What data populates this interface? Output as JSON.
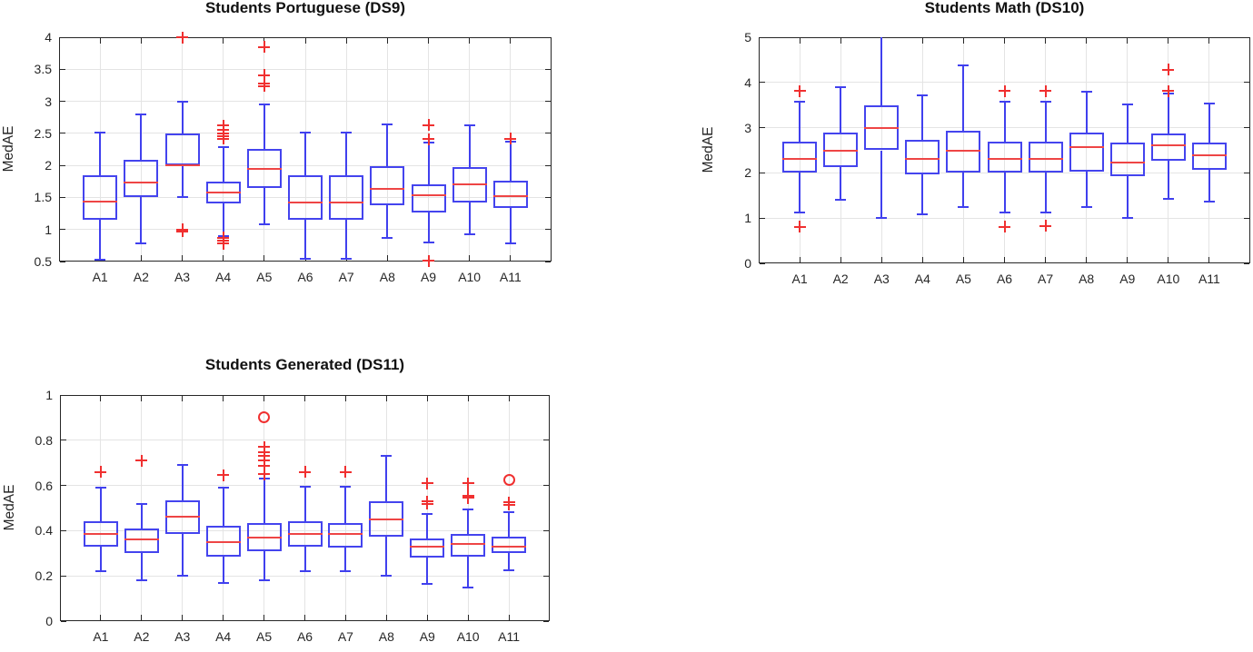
{
  "figure": {
    "background": "#ffffff",
    "palette": {
      "box_color": "#4444ee",
      "median_color": "#ee4545",
      "outlier_color": "#f03030",
      "grid_color": "#e4e4e4",
      "axis_color": "#262626",
      "text_color": "#262626"
    }
  },
  "chart_data": [
    {
      "type": "boxplot",
      "title": "Students Portuguese (DS9)",
      "ylabel": "MedAE",
      "xlabel": "",
      "grid": true,
      "legend": "none",
      "categories": [
        "A1",
        "A2",
        "A3",
        "A4",
        "A5",
        "A6",
        "A7",
        "A8",
        "A9",
        "A10",
        "A11"
      ],
      "ylim": [
        0.5,
        4
      ],
      "yticks": [
        0.5,
        1,
        1.5,
        2,
        2.5,
        3,
        3.5,
        4
      ],
      "ytick_labels": [
        "0.5",
        "1",
        "1.5",
        "2",
        "2.5",
        "3",
        "3.5",
        "4"
      ],
      "boxes": [
        {
          "category": "A1",
          "whisker_low": 0.53,
          "q1": 1.15,
          "median": 1.43,
          "q3": 1.84,
          "whisker_high": 2.51,
          "outliers": []
        },
        {
          "category": "A2",
          "whisker_low": 0.78,
          "q1": 1.5,
          "median": 1.73,
          "q3": 2.09,
          "whisker_high": 2.79,
          "outliers": []
        },
        {
          "category": "A3",
          "whisker_low": 1.5,
          "q1": 2.0,
          "median": 2.0,
          "q3": 2.5,
          "whisker_high": 3.0,
          "outliers": [
            4.0,
            1.0,
            0.97
          ]
        },
        {
          "category": "A4",
          "whisker_low": 0.9,
          "q1": 1.4,
          "median": 1.58,
          "q3": 1.75,
          "whisker_high": 2.28,
          "outliers": [
            2.62,
            2.55,
            2.5,
            2.46,
            2.42,
            0.87,
            0.82,
            0.78
          ]
        },
        {
          "category": "A5",
          "whisker_low": 1.08,
          "q1": 1.65,
          "median": 1.95,
          "q3": 2.26,
          "whisker_high": 2.95,
          "outliers": [
            3.85,
            3.41,
            3.28,
            3.24
          ]
        },
        {
          "category": "A6",
          "whisker_low": 0.54,
          "q1": 1.15,
          "median": 1.42,
          "q3": 1.84,
          "whisker_high": 2.51,
          "outliers": []
        },
        {
          "category": "A7",
          "whisker_low": 0.54,
          "q1": 1.15,
          "median": 1.42,
          "q3": 1.84,
          "whisker_high": 2.51,
          "outliers": []
        },
        {
          "category": "A8",
          "whisker_low": 0.87,
          "q1": 1.38,
          "median": 1.64,
          "q3": 1.99,
          "whisker_high": 2.64,
          "outliers": []
        },
        {
          "category": "A9",
          "whisker_low": 0.8,
          "q1": 1.26,
          "median": 1.53,
          "q3": 1.71,
          "whisker_high": 2.36,
          "outliers": [
            2.63,
            2.41,
            0.51
          ]
        },
        {
          "category": "A10",
          "whisker_low": 0.93,
          "q1": 1.42,
          "median": 1.71,
          "q3": 1.97,
          "whisker_high": 2.62,
          "outliers": []
        },
        {
          "category": "A11",
          "whisker_low": 0.79,
          "q1": 1.33,
          "median": 1.52,
          "q3": 1.76,
          "whisker_high": 2.37,
          "outliers": [
            2.42
          ]
        }
      ]
    },
    {
      "type": "boxplot",
      "title": "Students Math (DS10)",
      "ylabel": "MedAE",
      "xlabel": "",
      "grid": true,
      "legend": "none",
      "categories": [
        "A1",
        "A2",
        "A3",
        "A4",
        "A5",
        "A6",
        "A7",
        "A8",
        "A9",
        "A10",
        "A11"
      ],
      "ylim": [
        0,
        5
      ],
      "yticks": [
        0,
        1,
        2,
        3,
        4,
        5
      ],
      "ytick_labels": [
        "0",
        "1",
        "2",
        "3",
        "4",
        "5"
      ],
      "boxes": [
        {
          "category": "A1",
          "whisker_low": 1.13,
          "q1": 2.0,
          "median": 2.31,
          "q3": 2.7,
          "whisker_high": 3.58,
          "outliers": [
            3.81,
            0.81
          ]
        },
        {
          "category": "A2",
          "whisker_low": 1.4,
          "q1": 2.12,
          "median": 2.5,
          "q3": 2.89,
          "whisker_high": 3.9,
          "outliers": []
        },
        {
          "category": "A3",
          "whisker_low": 1.0,
          "q1": 2.5,
          "median": 3.0,
          "q3": 3.5,
          "whisker_high": 5.0,
          "outliers": []
        },
        {
          "category": "A4",
          "whisker_low": 1.09,
          "q1": 1.96,
          "median": 2.31,
          "q3": 2.74,
          "whisker_high": 3.71,
          "outliers": []
        },
        {
          "category": "A5",
          "whisker_low": 1.25,
          "q1": 2.0,
          "median": 2.5,
          "q3": 2.93,
          "whisker_high": 4.37,
          "outliers": []
        },
        {
          "category": "A6",
          "whisker_low": 1.13,
          "q1": 2.0,
          "median": 2.31,
          "q3": 2.7,
          "whisker_high": 3.58,
          "outliers": [
            3.81,
            0.81
          ]
        },
        {
          "category": "A7",
          "whisker_low": 1.13,
          "q1": 2.0,
          "median": 2.31,
          "q3": 2.7,
          "whisker_high": 3.58,
          "outliers": [
            3.81,
            0.83
          ]
        },
        {
          "category": "A8",
          "whisker_low": 1.25,
          "q1": 2.03,
          "median": 2.57,
          "q3": 2.89,
          "whisker_high": 3.79,
          "outliers": []
        },
        {
          "category": "A9",
          "whisker_low": 1.0,
          "q1": 1.93,
          "median": 2.23,
          "q3": 2.67,
          "whisker_high": 3.51,
          "outliers": []
        },
        {
          "category": "A10",
          "whisker_low": 1.43,
          "q1": 2.27,
          "median": 2.61,
          "q3": 2.87,
          "whisker_high": 3.75,
          "outliers": [
            4.28,
            3.81
          ]
        },
        {
          "category": "A11",
          "whisker_low": 1.37,
          "q1": 2.07,
          "median": 2.39,
          "q3": 2.68,
          "whisker_high": 3.53,
          "outliers": []
        }
      ]
    },
    {
      "type": "boxplot",
      "title": "Students Generated (DS11)",
      "ylabel": "MedAE",
      "xlabel": "",
      "grid": true,
      "legend": "none",
      "categories": [
        "A1",
        "A2",
        "A3",
        "A4",
        "A5",
        "A6",
        "A7",
        "A8",
        "A9",
        "A10",
        "A11"
      ],
      "ylim": [
        0,
        1
      ],
      "yticks": [
        0,
        0.2,
        0.4,
        0.6,
        0.8,
        1
      ],
      "ytick_labels": [
        "0",
        "0.2",
        "0.4",
        "0.6",
        "0.8",
        "1"
      ],
      "boxes": [
        {
          "category": "A1",
          "whisker_low": 0.22,
          "q1": 0.33,
          "median": 0.385,
          "q3": 0.44,
          "whisker_high": 0.59,
          "outliers": [
            0.66
          ]
        },
        {
          "category": "A2",
          "whisker_low": 0.18,
          "q1": 0.3,
          "median": 0.36,
          "q3": 0.41,
          "whisker_high": 0.52,
          "outliers": [
            0.71
          ]
        },
        {
          "category": "A3",
          "whisker_low": 0.2,
          "q1": 0.385,
          "median": 0.46,
          "q3": 0.535,
          "whisker_high": 0.69,
          "outliers": []
        },
        {
          "category": "A4",
          "whisker_low": 0.17,
          "q1": 0.285,
          "median": 0.35,
          "q3": 0.42,
          "whisker_high": 0.59,
          "outliers": [
            0.645
          ]
        },
        {
          "category": "A5",
          "whisker_low": 0.18,
          "q1": 0.31,
          "median": 0.37,
          "q3": 0.435,
          "whisker_high": 0.63,
          "outliers": [
            0.77,
            0.745,
            0.73,
            0.71,
            0.685,
            0.65
          ],
          "outliers_circle": [
            0.9
          ]
        },
        {
          "category": "A6",
          "whisker_low": 0.22,
          "q1": 0.33,
          "median": 0.385,
          "q3": 0.44,
          "whisker_high": 0.595,
          "outliers": [
            0.66
          ]
        },
        {
          "category": "A7",
          "whisker_low": 0.22,
          "q1": 0.325,
          "median": 0.385,
          "q3": 0.435,
          "whisker_high": 0.595,
          "outliers": [
            0.66
          ]
        },
        {
          "category": "A8",
          "whisker_low": 0.2,
          "q1": 0.375,
          "median": 0.45,
          "q3": 0.53,
          "whisker_high": 0.73,
          "outliers": []
        },
        {
          "category": "A9",
          "whisker_low": 0.165,
          "q1": 0.28,
          "median": 0.33,
          "q3": 0.365,
          "whisker_high": 0.475,
          "outliers": [
            0.61,
            0.53,
            0.52
          ]
        },
        {
          "category": "A10",
          "whisker_low": 0.15,
          "q1": 0.285,
          "median": 0.34,
          "q3": 0.385,
          "whisker_high": 0.495,
          "outliers": [
            0.61,
            0.555,
            0.545
          ]
        },
        {
          "category": "A11",
          "whisker_low": 0.225,
          "q1": 0.3,
          "median": 0.33,
          "q3": 0.375,
          "whisker_high": 0.48,
          "outliers": [
            0.525,
            0.515
          ],
          "outliers_circle": [
            0.625
          ]
        }
      ]
    }
  ]
}
